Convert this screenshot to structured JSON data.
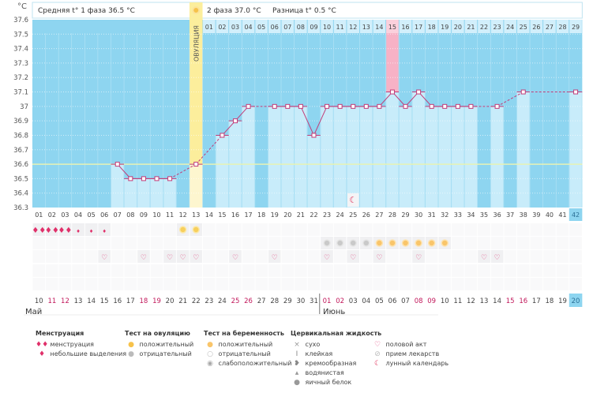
{
  "header": {
    "unit": "°C",
    "phase1": "Средняя t° 1 фаза 36.5 °C",
    "phase2": "2 фаза 37.0 °C",
    "diff": "Разница t° 0.5 °C",
    "ovulation_label": "ОВУЛЯЦИЯ"
  },
  "chart_data": {
    "type": "line",
    "xlabel": "",
    "ylabel": "°C",
    "ylim": [
      36.3,
      37.6
    ],
    "y_ticks": [
      "37.6",
      "37.5",
      "37.4",
      "37.3",
      "37.2",
      "37.1",
      "37",
      "36.9",
      "36.8",
      "36.7",
      "36.6",
      "36.5",
      "36.4",
      "36.3"
    ],
    "coverline": 36.6,
    "ovulation_day": 13,
    "highlight_day": 28,
    "cycle_days": [
      "01",
      "02",
      "03",
      "04",
      "05",
      "06",
      "07",
      "08",
      "09",
      "10",
      "11",
      "12",
      "13",
      "14",
      "15",
      "16",
      "17",
      "18",
      "19",
      "20",
      "21",
      "22",
      "23",
      "24",
      "25",
      "26",
      "27",
      "28",
      "29",
      "30",
      "31",
      "32",
      "33",
      "34",
      "35",
      "36",
      "37",
      "38",
      "39",
      "40",
      "41",
      "42"
    ],
    "luteal_days": [
      "01",
      "02",
      "03",
      "04",
      "05",
      "06",
      "07",
      "08",
      "09",
      "10",
      "11",
      "12",
      "13",
      "14",
      "15",
      "16",
      "17",
      "18",
      "19",
      "20",
      "21",
      "22",
      "23",
      "24",
      "25",
      "26",
      "27",
      "28",
      "29"
    ],
    "temperatures": [
      null,
      null,
      null,
      null,
      null,
      null,
      36.6,
      36.5,
      36.5,
      36.5,
      36.5,
      null,
      36.6,
      null,
      36.8,
      36.9,
      37.0,
      null,
      37.0,
      37.0,
      37.0,
      36.8,
      37.0,
      37.0,
      37.0,
      37.0,
      37.0,
      37.1,
      37.0,
      37.1,
      37.0,
      37.0,
      37.0,
      37.0,
      null,
      37.0,
      null,
      37.1,
      null,
      null,
      null,
      37.1
    ],
    "dates": [
      "10",
      "11",
      "12",
      "13",
      "14",
      "15",
      "16",
      "17",
      "18",
      "19",
      "20",
      "21",
      "22",
      "23",
      "24",
      "25",
      "26",
      "27",
      "28",
      "29",
      "30",
      "31",
      "01",
      "02",
      "03",
      "04",
      "05",
      "06",
      "07",
      "08",
      "09",
      "10",
      "11",
      "12",
      "13",
      "14",
      "15",
      "16",
      "17",
      "18",
      "19",
      "20"
    ],
    "weekend_dates_idx": [
      1,
      2,
      8,
      9,
      15,
      16,
      22,
      23,
      29,
      30,
      36,
      37
    ],
    "months": [
      "Май",
      "Июнь"
    ],
    "current_day": 42
  },
  "markers": {
    "menstruation": {
      "1": "heavy",
      "2": "heavy",
      "3": "heavy",
      "4": "light",
      "5": "light",
      "6": "light"
    },
    "ovulation_test": {
      "12": "positive",
      "13": "positive"
    },
    "pregnancy_test": {
      "23": "weak",
      "24": "weak",
      "25": "weak",
      "26": "weak",
      "27": "positive",
      "28": "positive",
      "29": "positive",
      "30": "positive",
      "31": "positive",
      "32": "positive"
    },
    "intercourse": [
      6,
      9,
      11,
      12,
      13,
      16,
      19,
      23,
      25,
      27,
      30,
      35,
      36
    ],
    "moon": [
      25
    ]
  },
  "legend": [
    {
      "title": "Менструация",
      "items": [
        {
          "icon": "menstruation-icon",
          "label": "менструация"
        },
        {
          "icon": "spotting-icon",
          "label": "небольшие выделения"
        }
      ]
    },
    {
      "title": "Тест на овуляцию",
      "items": [
        {
          "icon": "ovulation-positive-icon",
          "label": "положительный"
        },
        {
          "icon": "ovulation-negative-icon",
          "label": "отрицательный"
        }
      ]
    },
    {
      "title": "Тест на беременность",
      "items": [
        {
          "icon": "pregnancy-positive-icon",
          "label": "положительный"
        },
        {
          "icon": "pregnancy-negative-icon",
          "label": "отрицательный"
        },
        {
          "icon": "pregnancy-weak-icon",
          "label": "слабоположительный"
        }
      ]
    },
    {
      "title": "Цервикальная жидкость",
      "items": [
        {
          "icon": "dry-icon",
          "label": "сухо"
        },
        {
          "icon": "sticky-icon",
          "label": "клейкая"
        },
        {
          "icon": "creamy-icon",
          "label": "кремообразная"
        },
        {
          "icon": "watery-icon",
          "label": "водянистая"
        },
        {
          "icon": "egg-white-icon",
          "label": "яичный белок"
        }
      ]
    },
    {
      "title": "",
      "items": [
        {
          "icon": "heart-icon",
          "label": "половой акт"
        },
        {
          "icon": "pill-icon",
          "label": "прием лекарств"
        },
        {
          "icon": "moon-icon",
          "label": "лунный календарь"
        }
      ]
    }
  ],
  "colors": {
    "bg": "#8ed5f0",
    "bar": "#c8ecfa",
    "ovulation": "#fcee9c",
    "highlight": "#f7b2c6",
    "line": "#c23c78",
    "coverline": "#e6f2b4",
    "weekend": "#c2185b"
  }
}
